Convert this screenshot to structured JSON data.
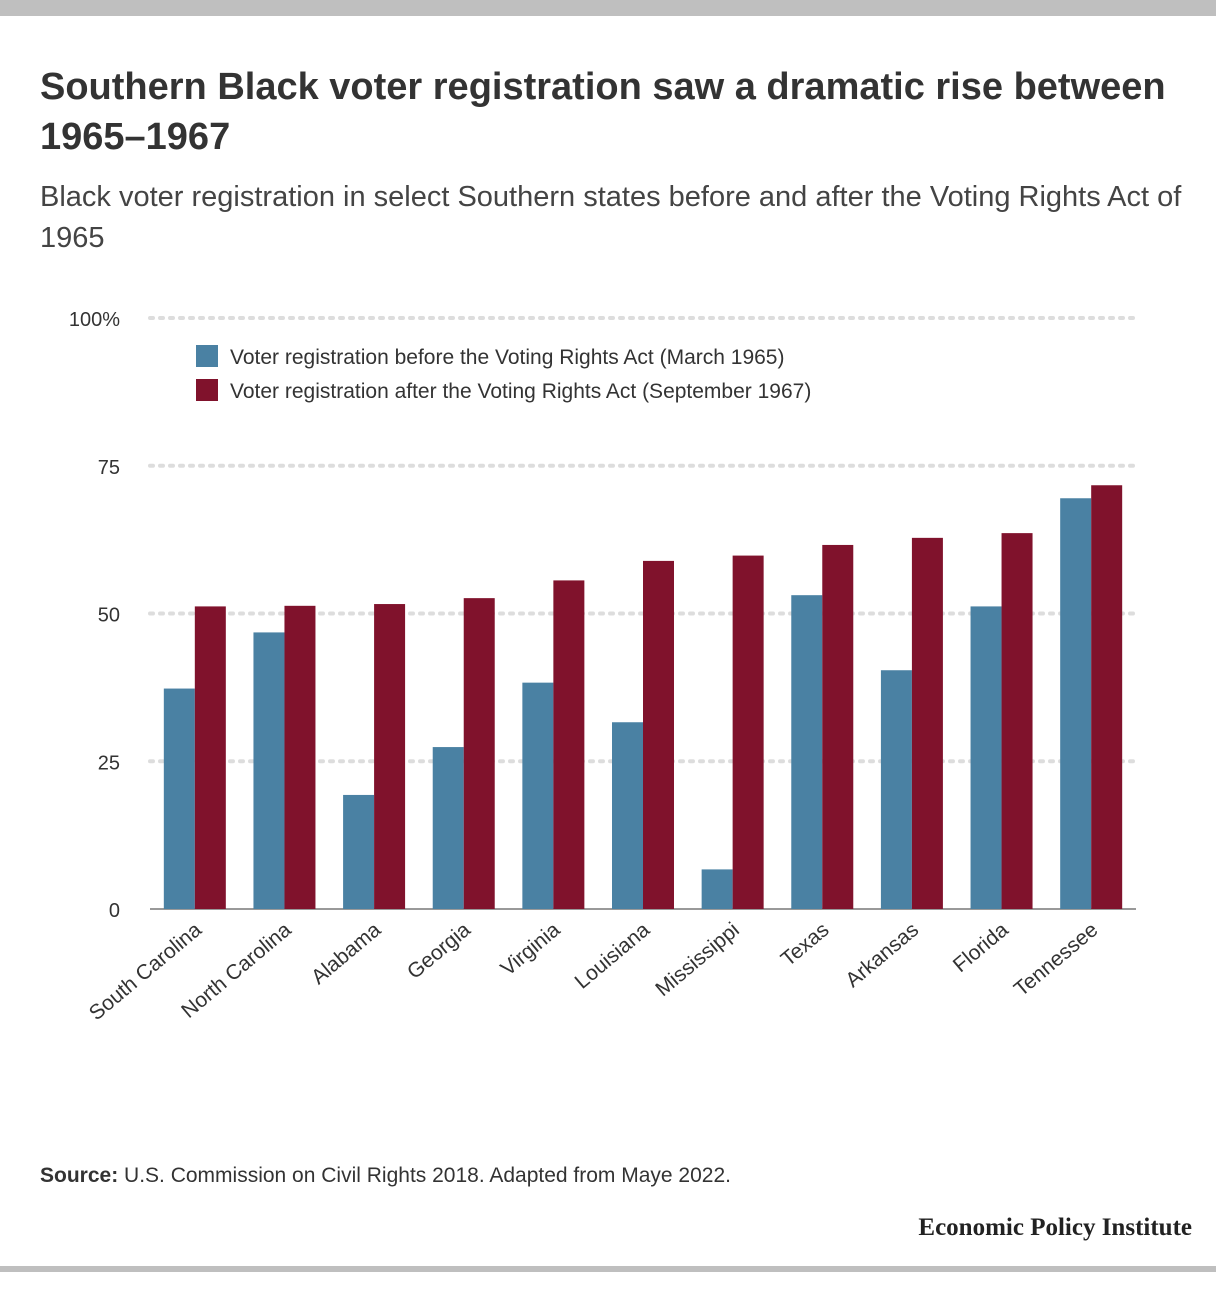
{
  "header": {
    "title": "Southern Black voter registration saw a dramatic rise between 1965–1967",
    "subtitle": "Black voter registration in select Southern states before and after the Voting Rights Act of 1965"
  },
  "footer": {
    "source_label": "Source:",
    "source_text": "U.S. Commission on Civil Rights 2018. Adapted from Maye 2022.",
    "brand": "Economic Policy Institute"
  },
  "colors": {
    "before": "#4a81a3",
    "after": "#80122c",
    "grid": "#dddddd",
    "axis": "#999999"
  },
  "chart_data": {
    "type": "bar",
    "title": "Southern Black voter registration saw a dramatic rise between 1965–1967",
    "subtitle": "Black voter registration in select Southern states before and after the Voting Rights Act of 1965",
    "xlabel": "",
    "ylabel": "",
    "ylim": [
      0,
      100
    ],
    "yticks": [
      0,
      25,
      50,
      75,
      100
    ],
    "ytick_labels": [
      "0",
      "25",
      "50",
      "75",
      "100%"
    ],
    "grid": true,
    "legend_position": "top-left",
    "categories": [
      "South Carolina",
      "North Carolina",
      "Alabama",
      "Georgia",
      "Virginia",
      "Louisiana",
      "Mississippi",
      "Texas",
      "Arkansas",
      "Florida",
      "Tennessee"
    ],
    "series": [
      {
        "name": "Voter registration before the Voting Rights Act (March 1965)",
        "color": "#4a81a3",
        "values": [
          37.3,
          46.8,
          19.3,
          27.4,
          38.3,
          31.6,
          6.7,
          53.1,
          40.4,
          51.2,
          69.5
        ]
      },
      {
        "name": "Voter registration after the Voting Rights Act (September 1967)",
        "color": "#80122c",
        "values": [
          51.2,
          51.3,
          51.6,
          52.6,
          55.6,
          58.9,
          59.8,
          61.6,
          62.8,
          63.6,
          71.7
        ]
      }
    ]
  }
}
